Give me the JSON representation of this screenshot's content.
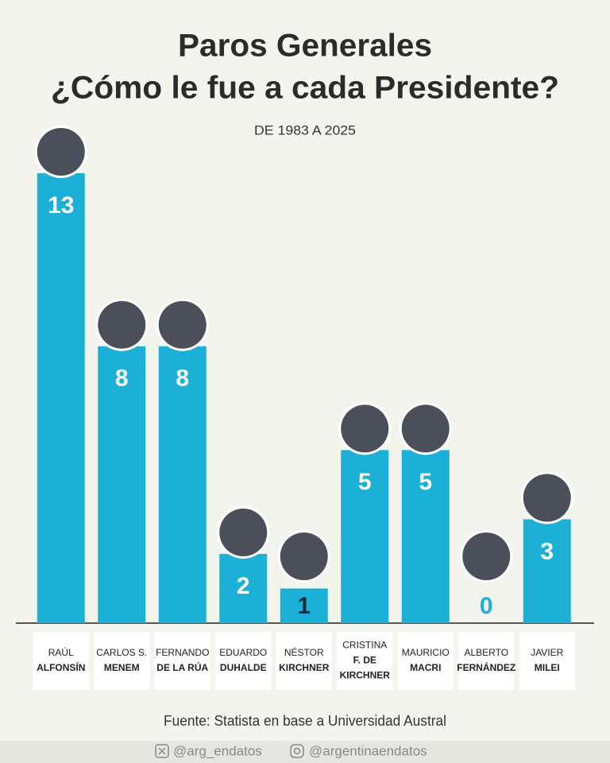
{
  "chart_data": {
    "type": "bar",
    "title": [
      "Paros Generales",
      "¿Cómo le fue a cada Presidente?"
    ],
    "subtitle": "DE 1983 A 2025",
    "categories": [
      [
        "RAÚL",
        "ALFONSÍN"
      ],
      [
        "CARLOS S.",
        "MENEM"
      ],
      [
        "FERNANDO",
        "DE LA RÚA"
      ],
      [
        "EDUARDO",
        "DUHALDE"
      ],
      [
        "NÉSTOR",
        "KIRCHNER"
      ],
      [
        "CRISTINA",
        "F. DE",
        "KIRCHNER"
      ],
      [
        "MAURICIO",
        "MACRI"
      ],
      [
        "ALBERTO",
        "FERNÁNDEZ"
      ],
      [
        "JAVIER",
        "MILEI"
      ]
    ],
    "values": [
      13,
      8,
      8,
      2,
      1,
      5,
      5,
      0,
      3
    ],
    "color": "#1cb0d6",
    "ylim": [
      0,
      13
    ],
    "source": "Fuente: Statista en base a Universidad Austral"
  },
  "footer": {
    "social": [
      "@arg_endatos",
      "@argentinaendatos"
    ]
  }
}
